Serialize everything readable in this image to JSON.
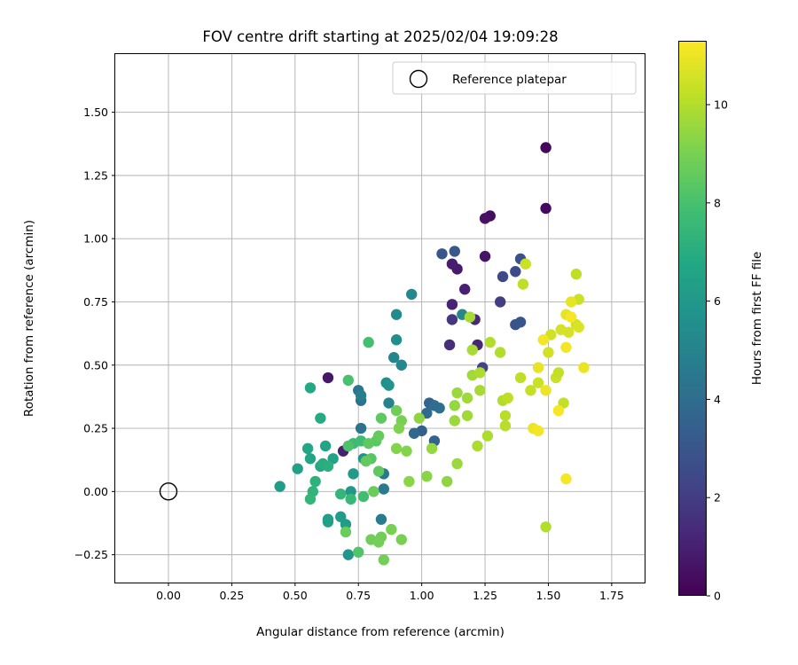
{
  "chart_data": {
    "type": "scatter",
    "title": "FOV centre drift starting at 2025/02/04 19:09:28",
    "xlabel": "Angular distance from reference (arcmin)",
    "ylabel": "Rotation from reference (arcmin)",
    "xlim": [
      -0.21,
      1.88
    ],
    "ylim": [
      -0.36,
      1.73
    ],
    "xticks": [
      "0.00",
      "0.25",
      "0.50",
      "0.75",
      "1.00",
      "1.25",
      "1.50",
      "1.75"
    ],
    "yticks": [
      "−0.25",
      "0.00",
      "0.25",
      "0.50",
      "0.75",
      "1.00",
      "1.25",
      "1.50"
    ],
    "grid": true,
    "legend": {
      "placement": "top-right",
      "label": "Reference platepar"
    },
    "reference_point": {
      "x": 0.0,
      "y": 0.0
    },
    "colorbar": {
      "label": "Hours from first FF file",
      "colormap": "viridis",
      "min": 0,
      "max": 11.3,
      "ticks": [
        "0",
        "2",
        "4",
        "6",
        "8",
        "10"
      ]
    },
    "points": [
      {
        "x": 1.49,
        "y": 1.36,
        "h": 0.2
      },
      {
        "x": 1.49,
        "y": 1.12,
        "h": 0.3
      },
      {
        "x": 1.27,
        "y": 1.09,
        "h": 0.4
      },
      {
        "x": 1.25,
        "y": 1.08,
        "h": 0.5
      },
      {
        "x": 1.25,
        "y": 0.93,
        "h": 0.6
      },
      {
        "x": 1.14,
        "y": 0.88,
        "h": 0.8
      },
      {
        "x": 1.12,
        "y": 0.9,
        "h": 0.9
      },
      {
        "x": 1.17,
        "y": 0.8,
        "h": 1.0
      },
      {
        "x": 1.12,
        "y": 0.74,
        "h": 1.1
      },
      {
        "x": 1.22,
        "y": 0.58,
        "h": 1.2
      },
      {
        "x": 1.21,
        "y": 0.68,
        "h": 1.3
      },
      {
        "x": 0.63,
        "y": 0.45,
        "h": 0.7
      },
      {
        "x": 0.69,
        "y": 0.16,
        "h": 1.0
      },
      {
        "x": 1.11,
        "y": 0.58,
        "h": 1.5
      },
      {
        "x": 1.12,
        "y": 0.68,
        "h": 1.8
      },
      {
        "x": 1.31,
        "y": 0.75,
        "h": 2.0
      },
      {
        "x": 1.24,
        "y": 0.49,
        "h": 2.3
      },
      {
        "x": 1.32,
        "y": 0.85,
        "h": 2.5
      },
      {
        "x": 1.37,
        "y": 0.87,
        "h": 2.6
      },
      {
        "x": 1.39,
        "y": 0.92,
        "h": 2.8
      },
      {
        "x": 1.37,
        "y": 0.66,
        "h": 2.9
      },
      {
        "x": 1.39,
        "y": 0.67,
        "h": 3.0
      },
      {
        "x": 1.08,
        "y": 0.94,
        "h": 3.0
      },
      {
        "x": 1.13,
        "y": 0.95,
        "h": 3.1
      },
      {
        "x": 1.0,
        "y": 0.24,
        "h": 3.4
      },
      {
        "x": 1.03,
        "y": 0.35,
        "h": 3.5
      },
      {
        "x": 1.05,
        "y": 0.2,
        "h": 3.6
      },
      {
        "x": 0.97,
        "y": 0.23,
        "h": 3.8
      },
      {
        "x": 1.02,
        "y": 0.31,
        "h": 3.9
      },
      {
        "x": 1.05,
        "y": 0.34,
        "h": 4.0
      },
      {
        "x": 1.07,
        "y": 0.33,
        "h": 4.1
      },
      {
        "x": 0.76,
        "y": 0.36,
        "h": 4.2
      },
      {
        "x": 0.76,
        "y": 0.25,
        "h": 4.3
      },
      {
        "x": 0.75,
        "y": 0.4,
        "h": 4.4
      },
      {
        "x": 0.85,
        "y": 0.07,
        "h": 4.5
      },
      {
        "x": 0.85,
        "y": 0.01,
        "h": 4.6
      },
      {
        "x": 0.84,
        "y": -0.11,
        "h": 4.7
      },
      {
        "x": 0.76,
        "y": 0.38,
        "h": 4.8
      },
      {
        "x": 0.87,
        "y": 0.35,
        "h": 5.0
      },
      {
        "x": 0.89,
        "y": 0.53,
        "h": 5.1
      },
      {
        "x": 0.92,
        "y": 0.5,
        "h": 5.2
      },
      {
        "x": 0.96,
        "y": 0.78,
        "h": 5.3
      },
      {
        "x": 0.9,
        "y": 0.7,
        "h": 5.4
      },
      {
        "x": 0.9,
        "y": 0.6,
        "h": 5.5
      },
      {
        "x": 0.86,
        "y": 0.43,
        "h": 5.6
      },
      {
        "x": 1.16,
        "y": 0.7,
        "h": 5.2
      },
      {
        "x": 0.87,
        "y": 0.42,
        "h": 5.7
      },
      {
        "x": 0.77,
        "y": 0.13,
        "h": 5.8
      },
      {
        "x": 0.71,
        "y": -0.25,
        "h": 5.9
      },
      {
        "x": 0.72,
        "y": 0.0,
        "h": 6.0
      },
      {
        "x": 0.73,
        "y": 0.07,
        "h": 6.1
      },
      {
        "x": 0.68,
        "y": -0.1,
        "h": 6.2
      },
      {
        "x": 0.7,
        "y": -0.13,
        "h": 6.2
      },
      {
        "x": 0.63,
        "y": -0.11,
        "h": 6.3
      },
      {
        "x": 0.63,
        "y": -0.12,
        "h": 6.4
      },
      {
        "x": 0.65,
        "y": 0.13,
        "h": 6.5
      },
      {
        "x": 0.62,
        "y": 0.18,
        "h": 6.6
      },
      {
        "x": 0.55,
        "y": 0.17,
        "h": 6.7
      },
      {
        "x": 0.56,
        "y": 0.41,
        "h": 6.8
      },
      {
        "x": 0.6,
        "y": 0.29,
        "h": 6.9
      },
      {
        "x": 0.44,
        "y": 0.02,
        "h": 6.2
      },
      {
        "x": 0.51,
        "y": 0.09,
        "h": 6.4
      },
      {
        "x": 0.56,
        "y": 0.13,
        "h": 6.6
      },
      {
        "x": 0.6,
        "y": 0.1,
        "h": 6.8
      },
      {
        "x": 0.61,
        "y": 0.11,
        "h": 7.0
      },
      {
        "x": 0.63,
        "y": 0.1,
        "h": 7.1
      },
      {
        "x": 0.58,
        "y": 0.04,
        "h": 7.2
      },
      {
        "x": 0.57,
        "y": 0.0,
        "h": 7.3
      },
      {
        "x": 0.56,
        "y": -0.03,
        "h": 7.4
      },
      {
        "x": 0.68,
        "y": -0.01,
        "h": 7.4
      },
      {
        "x": 0.72,
        "y": -0.03,
        "h": 7.5
      },
      {
        "x": 0.73,
        "y": 0.19,
        "h": 7.6
      },
      {
        "x": 0.76,
        "y": 0.2,
        "h": 7.7
      },
      {
        "x": 0.77,
        "y": -0.02,
        "h": 7.8
      },
      {
        "x": 0.79,
        "y": 0.59,
        "h": 7.9
      },
      {
        "x": 0.71,
        "y": 0.44,
        "h": 8.0
      },
      {
        "x": 0.71,
        "y": 0.18,
        "h": 8.1
      },
      {
        "x": 0.75,
        "y": -0.24,
        "h": 8.2
      },
      {
        "x": 0.8,
        "y": 0.13,
        "h": 8.3
      },
      {
        "x": 0.82,
        "y": 0.2,
        "h": 8.4
      },
      {
        "x": 0.83,
        "y": 0.08,
        "h": 8.5
      },
      {
        "x": 0.79,
        "y": 0.19,
        "h": 8.5
      },
      {
        "x": 0.78,
        "y": 0.12,
        "h": 8.6
      },
      {
        "x": 0.83,
        "y": 0.22,
        "h": 8.6
      },
      {
        "x": 0.81,
        "y": 0.0,
        "h": 8.7
      },
      {
        "x": 0.7,
        "y": -0.16,
        "h": 8.7
      },
      {
        "x": 0.8,
        "y": -0.19,
        "h": 8.8
      },
      {
        "x": 0.84,
        "y": -0.18,
        "h": 8.8
      },
      {
        "x": 0.83,
        "y": -0.2,
        "h": 8.9
      },
      {
        "x": 0.85,
        "y": -0.27,
        "h": 8.9
      },
      {
        "x": 0.88,
        "y": -0.15,
        "h": 9.0
      },
      {
        "x": 0.92,
        "y": -0.19,
        "h": 9.0
      },
      {
        "x": 0.84,
        "y": 0.29,
        "h": 8.5
      },
      {
        "x": 0.9,
        "y": 0.32,
        "h": 8.8
      },
      {
        "x": 0.92,
        "y": 0.28,
        "h": 9.0
      },
      {
        "x": 0.91,
        "y": 0.25,
        "h": 9.1
      },
      {
        "x": 0.9,
        "y": 0.17,
        "h": 9.2
      },
      {
        "x": 0.94,
        "y": 0.16,
        "h": 9.2
      },
      {
        "x": 0.95,
        "y": 0.04,
        "h": 9.3
      },
      {
        "x": 1.02,
        "y": 0.06,
        "h": 9.3
      },
      {
        "x": 1.1,
        "y": 0.04,
        "h": 9.4
      },
      {
        "x": 0.99,
        "y": 0.29,
        "h": 9.4
      },
      {
        "x": 1.04,
        "y": 0.17,
        "h": 9.5
      },
      {
        "x": 1.13,
        "y": 0.34,
        "h": 9.5
      },
      {
        "x": 1.14,
        "y": 0.39,
        "h": 9.6
      },
      {
        "x": 1.14,
        "y": 0.11,
        "h": 9.6
      },
      {
        "x": 1.13,
        "y": 0.28,
        "h": 9.6
      },
      {
        "x": 1.18,
        "y": 0.3,
        "h": 9.7
      },
      {
        "x": 1.18,
        "y": 0.37,
        "h": 9.7
      },
      {
        "x": 1.2,
        "y": 0.46,
        "h": 9.7
      },
      {
        "x": 1.2,
        "y": 0.56,
        "h": 9.8
      },
      {
        "x": 1.19,
        "y": 0.69,
        "h": 9.8
      },
      {
        "x": 1.23,
        "y": 0.4,
        "h": 9.8
      },
      {
        "x": 1.23,
        "y": 0.47,
        "h": 9.9
      },
      {
        "x": 1.22,
        "y": 0.18,
        "h": 9.9
      },
      {
        "x": 1.26,
        "y": 0.22,
        "h": 9.9
      },
      {
        "x": 1.27,
        "y": 0.59,
        "h": 10.0
      },
      {
        "x": 1.31,
        "y": 0.55,
        "h": 10.0
      },
      {
        "x": 1.32,
        "y": 0.36,
        "h": 10.0
      },
      {
        "x": 1.33,
        "y": 0.3,
        "h": 10.1
      },
      {
        "x": 1.33,
        "y": 0.26,
        "h": 10.1
      },
      {
        "x": 1.34,
        "y": 0.37,
        "h": 10.2
      },
      {
        "x": 1.39,
        "y": 0.45,
        "h": 10.2
      },
      {
        "x": 1.4,
        "y": 0.82,
        "h": 10.2
      },
      {
        "x": 1.41,
        "y": 0.9,
        "h": 10.4
      },
      {
        "x": 1.43,
        "y": 0.4,
        "h": 10.3
      },
      {
        "x": 1.46,
        "y": 0.43,
        "h": 10.4
      },
      {
        "x": 1.49,
        "y": -0.14,
        "h": 10.0
      },
      {
        "x": 1.5,
        "y": 0.55,
        "h": 10.5
      },
      {
        "x": 1.51,
        "y": 0.62,
        "h": 10.5
      },
      {
        "x": 1.53,
        "y": 0.45,
        "h": 10.4
      },
      {
        "x": 1.54,
        "y": 0.47,
        "h": 10.3
      },
      {
        "x": 1.55,
        "y": 0.64,
        "h": 10.6
      },
      {
        "x": 1.56,
        "y": 0.35,
        "h": 10.3
      },
      {
        "x": 1.57,
        "y": 0.7,
        "h": 10.9
      },
      {
        "x": 1.58,
        "y": 0.63,
        "h": 10.6
      },
      {
        "x": 1.61,
        "y": 0.86,
        "h": 10.2
      },
      {
        "x": 1.61,
        "y": 0.66,
        "h": 10.5
      },
      {
        "x": 1.62,
        "y": 0.76,
        "h": 10.4
      },
      {
        "x": 1.62,
        "y": 0.65,
        "h": 10.7
      },
      {
        "x": 1.59,
        "y": 0.75,
        "h": 10.9
      },
      {
        "x": 1.64,
        "y": 0.49,
        "h": 11.0
      },
      {
        "x": 1.48,
        "y": 0.6,
        "h": 11.1
      },
      {
        "x": 1.46,
        "y": 0.49,
        "h": 10.9
      },
      {
        "x": 1.44,
        "y": 0.25,
        "h": 11.0
      },
      {
        "x": 1.46,
        "y": 0.24,
        "h": 11.1
      },
      {
        "x": 1.49,
        "y": 0.4,
        "h": 11.0
      },
      {
        "x": 1.54,
        "y": 0.32,
        "h": 11.2
      },
      {
        "x": 1.57,
        "y": 0.57,
        "h": 11.1
      },
      {
        "x": 1.57,
        "y": 0.05,
        "h": 11.2
      },
      {
        "x": 1.59,
        "y": 0.69,
        "h": 11.2
      }
    ]
  }
}
